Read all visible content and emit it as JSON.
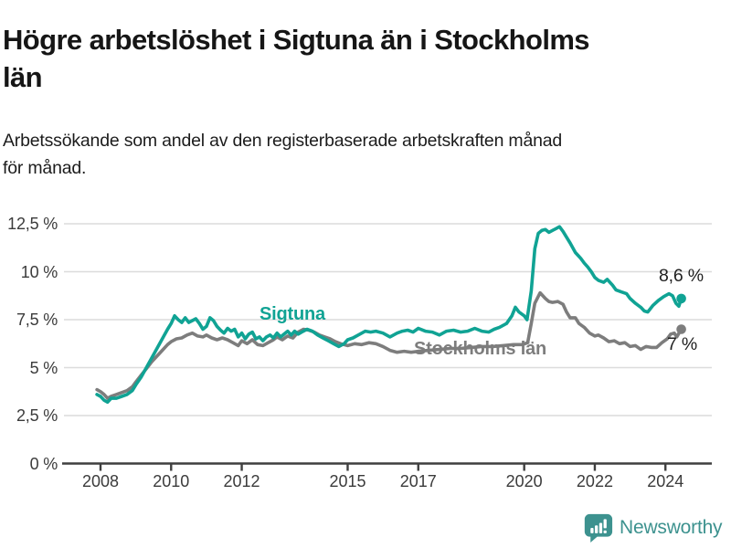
{
  "title": {
    "full": "Högre arbetslöshet i Sigtuna än i Stockholms län",
    "line1": "Högre arbetslöshet i Sigtuna än i Stockholms",
    "line2": "län"
  },
  "subtitle": {
    "full": "Arbetssökande som andel av den registerbaserade arbetskraften månad för månad.",
    "line1": "Arbetssökande som andel av den registerbaserade arbetskraften månad",
    "line2": "för månad."
  },
  "footer": {
    "brand": "Newsworthy",
    "logo_icon": "bar-chart-speech-bubble-icon"
  },
  "colors": {
    "sigtuna_line": "#10a394",
    "stockholm_line": "#7d7d7d",
    "gridline": "#dcdcdc",
    "axis": "#3f3f3f",
    "text_dark": "#161616",
    "brand_teal": "#3d928f"
  },
  "chart_data": {
    "type": "line",
    "title": "Högre arbetslöshet i Sigtuna än i Stockholms län",
    "subtitle": "Arbetssökande som andel av den registerbaserade arbetskraften månad för månad.",
    "unit": "%",
    "grid": "horizontal",
    "legend": "inline-labels",
    "xlim": [
      2007.0,
      2025.3
    ],
    "ylim": [
      0,
      13.2
    ],
    "x_ticks": [
      2008,
      2010,
      2012,
      2015,
      2017,
      2020,
      2022,
      2024
    ],
    "y_ticks": [
      {
        "value": 0,
        "label": "0 %"
      },
      {
        "value": 2.5,
        "label": "2,5 %"
      },
      {
        "value": 5,
        "label": "5 %"
      },
      {
        "value": 7.5,
        "label": "7,5 %"
      },
      {
        "value": 10,
        "label": "10 %"
      },
      {
        "value": 12.5,
        "label": "12,5 %"
      }
    ],
    "series": [
      {
        "name": "Sigtuna",
        "color": "#10a394",
        "end_label": "8,6 %",
        "end_value": 8.6,
        "points": [
          [
            2007.9,
            3.6
          ],
          [
            2008.0,
            3.5
          ],
          [
            2008.1,
            3.3
          ],
          [
            2008.2,
            3.2
          ],
          [
            2008.3,
            3.4
          ],
          [
            2008.45,
            3.4
          ],
          [
            2008.6,
            3.5
          ],
          [
            2008.75,
            3.6
          ],
          [
            2008.9,
            3.8
          ],
          [
            2009.0,
            4.1
          ],
          [
            2009.15,
            4.5
          ],
          [
            2009.3,
            5.0
          ],
          [
            2009.45,
            5.5
          ],
          [
            2009.6,
            6.0
          ],
          [
            2009.75,
            6.5
          ],
          [
            2009.9,
            7.0
          ],
          [
            2010.0,
            7.3
          ],
          [
            2010.1,
            7.7
          ],
          [
            2010.2,
            7.5
          ],
          [
            2010.3,
            7.35
          ],
          [
            2010.4,
            7.6
          ],
          [
            2010.5,
            7.35
          ],
          [
            2010.6,
            7.45
          ],
          [
            2010.7,
            7.55
          ],
          [
            2010.8,
            7.3
          ],
          [
            2010.9,
            7.0
          ],
          [
            2011.0,
            7.15
          ],
          [
            2011.1,
            7.6
          ],
          [
            2011.2,
            7.45
          ],
          [
            2011.3,
            7.15
          ],
          [
            2011.4,
            6.95
          ],
          [
            2011.5,
            6.8
          ],
          [
            2011.6,
            7.05
          ],
          [
            2011.7,
            6.9
          ],
          [
            2011.8,
            7.0
          ],
          [
            2011.9,
            6.6
          ],
          [
            2012.0,
            6.8
          ],
          [
            2012.1,
            6.5
          ],
          [
            2012.2,
            6.75
          ],
          [
            2012.3,
            6.85
          ],
          [
            2012.4,
            6.5
          ],
          [
            2012.5,
            6.6
          ],
          [
            2012.6,
            6.4
          ],
          [
            2012.7,
            6.6
          ],
          [
            2012.8,
            6.7
          ],
          [
            2012.9,
            6.55
          ],
          [
            2013.0,
            6.8
          ],
          [
            2013.1,
            6.6
          ],
          [
            2013.2,
            6.75
          ],
          [
            2013.3,
            6.9
          ],
          [
            2013.4,
            6.7
          ],
          [
            2013.5,
            6.9
          ],
          [
            2013.6,
            6.75
          ],
          [
            2013.7,
            6.85
          ],
          [
            2013.85,
            7.0
          ],
          [
            2014.0,
            6.9
          ],
          [
            2014.15,
            6.7
          ],
          [
            2014.3,
            6.55
          ],
          [
            2014.45,
            6.4
          ],
          [
            2014.6,
            6.25
          ],
          [
            2014.75,
            6.1
          ],
          [
            2014.9,
            6.25
          ],
          [
            2015.0,
            6.45
          ],
          [
            2015.15,
            6.55
          ],
          [
            2015.3,
            6.7
          ],
          [
            2015.5,
            6.9
          ],
          [
            2015.65,
            6.85
          ],
          [
            2015.8,
            6.9
          ],
          [
            2016.0,
            6.8
          ],
          [
            2016.2,
            6.6
          ],
          [
            2016.4,
            6.8
          ],
          [
            2016.55,
            6.9
          ],
          [
            2016.7,
            6.95
          ],
          [
            2016.85,
            6.85
          ],
          [
            2017.0,
            7.05
          ],
          [
            2017.2,
            6.9
          ],
          [
            2017.4,
            6.85
          ],
          [
            2017.6,
            6.7
          ],
          [
            2017.8,
            6.9
          ],
          [
            2018.0,
            6.95
          ],
          [
            2018.2,
            6.85
          ],
          [
            2018.4,
            6.9
          ],
          [
            2018.6,
            7.05
          ],
          [
            2018.8,
            6.9
          ],
          [
            2019.0,
            6.85
          ],
          [
            2019.15,
            7.0
          ],
          [
            2019.3,
            7.1
          ],
          [
            2019.5,
            7.3
          ],
          [
            2019.65,
            7.7
          ],
          [
            2019.75,
            8.15
          ],
          [
            2019.85,
            7.9
          ],
          [
            2020.0,
            7.7
          ],
          [
            2020.08,
            7.5
          ],
          [
            2020.2,
            9.0
          ],
          [
            2020.3,
            11.2
          ],
          [
            2020.4,
            12.0
          ],
          [
            2020.5,
            12.15
          ],
          [
            2020.6,
            12.2
          ],
          [
            2020.7,
            12.05
          ],
          [
            2020.8,
            12.15
          ],
          [
            2020.9,
            12.25
          ],
          [
            2021.0,
            12.35
          ],
          [
            2021.1,
            12.1
          ],
          [
            2021.2,
            11.8
          ],
          [
            2021.3,
            11.5
          ],
          [
            2021.45,
            11.0
          ],
          [
            2021.6,
            10.7
          ],
          [
            2021.7,
            10.45
          ],
          [
            2021.8,
            10.25
          ],
          [
            2021.9,
            10.0
          ],
          [
            2022.0,
            9.7
          ],
          [
            2022.1,
            9.55
          ],
          [
            2022.25,
            9.45
          ],
          [
            2022.35,
            9.6
          ],
          [
            2022.5,
            9.3
          ],
          [
            2022.6,
            9.05
          ],
          [
            2022.75,
            8.95
          ],
          [
            2022.9,
            8.85
          ],
          [
            2023.0,
            8.6
          ],
          [
            2023.15,
            8.35
          ],
          [
            2023.3,
            8.15
          ],
          [
            2023.4,
            7.95
          ],
          [
            2023.5,
            7.9
          ],
          [
            2023.65,
            8.25
          ],
          [
            2023.8,
            8.5
          ],
          [
            2023.95,
            8.7
          ],
          [
            2024.1,
            8.85
          ],
          [
            2024.2,
            8.75
          ],
          [
            2024.3,
            8.35
          ],
          [
            2024.38,
            8.2
          ],
          [
            2024.45,
            8.6
          ]
        ]
      },
      {
        "name": "Stockholms län",
        "color": "#7d7d7d",
        "end_label": "7 %",
        "end_value": 7.0,
        "points": [
          [
            2007.9,
            3.85
          ],
          [
            2008.0,
            3.75
          ],
          [
            2008.1,
            3.6
          ],
          [
            2008.2,
            3.4
          ],
          [
            2008.3,
            3.5
          ],
          [
            2008.45,
            3.6
          ],
          [
            2008.6,
            3.7
          ],
          [
            2008.75,
            3.8
          ],
          [
            2008.9,
            4.0
          ],
          [
            2009.0,
            4.25
          ],
          [
            2009.15,
            4.6
          ],
          [
            2009.3,
            4.95
          ],
          [
            2009.45,
            5.3
          ],
          [
            2009.6,
            5.6
          ],
          [
            2009.75,
            5.9
          ],
          [
            2009.9,
            6.2
          ],
          [
            2010.0,
            6.35
          ],
          [
            2010.15,
            6.5
          ],
          [
            2010.3,
            6.55
          ],
          [
            2010.45,
            6.7
          ],
          [
            2010.6,
            6.8
          ],
          [
            2010.75,
            6.65
          ],
          [
            2010.9,
            6.6
          ],
          [
            2011.0,
            6.7
          ],
          [
            2011.15,
            6.55
          ],
          [
            2011.3,
            6.45
          ],
          [
            2011.45,
            6.55
          ],
          [
            2011.6,
            6.45
          ],
          [
            2011.75,
            6.3
          ],
          [
            2011.9,
            6.15
          ],
          [
            2012.0,
            6.4
          ],
          [
            2012.15,
            6.25
          ],
          [
            2012.3,
            6.45
          ],
          [
            2012.45,
            6.2
          ],
          [
            2012.6,
            6.15
          ],
          [
            2012.75,
            6.3
          ],
          [
            2012.9,
            6.45
          ],
          [
            2013.0,
            6.6
          ],
          [
            2013.15,
            6.45
          ],
          [
            2013.3,
            6.65
          ],
          [
            2013.45,
            6.55
          ],
          [
            2013.6,
            6.85
          ],
          [
            2013.75,
            7.0
          ],
          [
            2013.9,
            6.95
          ],
          [
            2014.05,
            6.85
          ],
          [
            2014.2,
            6.7
          ],
          [
            2014.35,
            6.6
          ],
          [
            2014.5,
            6.5
          ],
          [
            2014.65,
            6.35
          ],
          [
            2014.8,
            6.25
          ],
          [
            2015.0,
            6.15
          ],
          [
            2015.2,
            6.25
          ],
          [
            2015.4,
            6.2
          ],
          [
            2015.6,
            6.3
          ],
          [
            2015.8,
            6.25
          ],
          [
            2016.0,
            6.1
          ],
          [
            2016.2,
            5.9
          ],
          [
            2016.4,
            5.8
          ],
          [
            2016.6,
            5.85
          ],
          [
            2016.8,
            5.8
          ],
          [
            2017.0,
            5.85
          ],
          [
            2017.3,
            5.9
          ],
          [
            2017.6,
            5.95
          ],
          [
            2017.9,
            6.0
          ],
          [
            2018.2,
            6.0
          ],
          [
            2018.5,
            6.05
          ],
          [
            2018.8,
            6.1
          ],
          [
            2019.1,
            6.1
          ],
          [
            2019.4,
            6.15
          ],
          [
            2019.7,
            6.2
          ],
          [
            2019.95,
            6.2
          ],
          [
            2020.1,
            6.3
          ],
          [
            2020.2,
            7.3
          ],
          [
            2020.3,
            8.35
          ],
          [
            2020.45,
            8.9
          ],
          [
            2020.6,
            8.6
          ],
          [
            2020.7,
            8.45
          ],
          [
            2020.8,
            8.4
          ],
          [
            2020.95,
            8.45
          ],
          [
            2021.1,
            8.3
          ],
          [
            2021.2,
            7.9
          ],
          [
            2021.3,
            7.6
          ],
          [
            2021.45,
            7.6
          ],
          [
            2021.55,
            7.3
          ],
          [
            2021.7,
            7.1
          ],
          [
            2021.85,
            6.8
          ],
          [
            2022.0,
            6.65
          ],
          [
            2022.1,
            6.7
          ],
          [
            2022.25,
            6.55
          ],
          [
            2022.4,
            6.35
          ],
          [
            2022.55,
            6.4
          ],
          [
            2022.7,
            6.25
          ],
          [
            2022.85,
            6.3
          ],
          [
            2023.0,
            6.1
          ],
          [
            2023.15,
            6.15
          ],
          [
            2023.3,
            5.95
          ],
          [
            2023.45,
            6.1
          ],
          [
            2023.6,
            6.05
          ],
          [
            2023.75,
            6.05
          ],
          [
            2023.9,
            6.3
          ],
          [
            2024.05,
            6.5
          ],
          [
            2024.15,
            6.75
          ],
          [
            2024.25,
            6.8
          ],
          [
            2024.32,
            6.6
          ],
          [
            2024.45,
            7.0
          ]
        ]
      }
    ]
  }
}
